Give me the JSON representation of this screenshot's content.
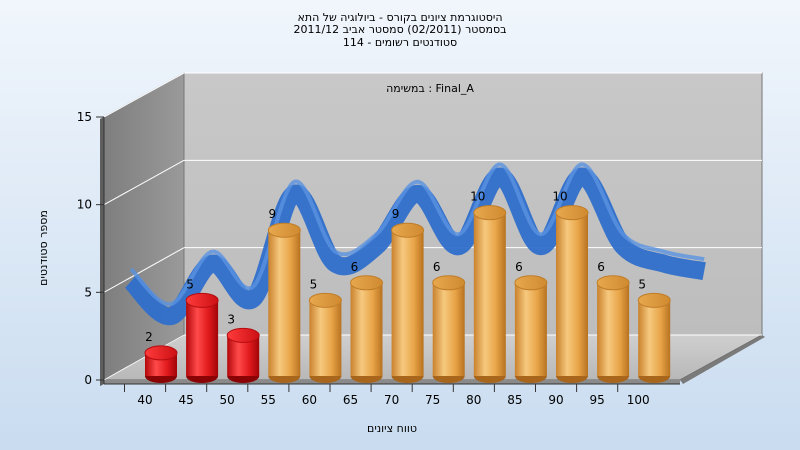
{
  "chart_data": {
    "type": "bar",
    "title_lines": [
      "היסטוגרמת ציונים בקורס - ביולוגיה של התא",
      "בסמסטר  (02/2011)  סמסטר אביב 2011/12",
      "114 - סטודנטים רשומים"
    ],
    "subtitle": "במשימה : Final_A",
    "xlabel": "טווח ציונים",
    "ylabel": "מספר סטודנטים",
    "categories": [
      "40",
      "45",
      "50",
      "55",
      "60",
      "65",
      "70",
      "75",
      "80",
      "85",
      "90",
      "95",
      "100"
    ],
    "values": [
      2,
      5,
      3,
      9,
      5,
      6,
      9,
      6,
      10,
      6,
      10,
      6,
      5
    ],
    "bar_colors": [
      "#e0191c",
      "#e0191c",
      "#e0191c",
      "#e1a24a",
      "#e1a24a",
      "#e1a24a",
      "#e1a24a",
      "#e1a24a",
      "#e1a24a",
      "#e1a24a",
      "#e1a24a",
      "#e1a24a",
      "#e1a24a"
    ],
    "smooth_line_color": "#2f6fcb",
    "yticks": [
      0,
      5,
      10,
      15
    ],
    "ylim": [
      0,
      15
    ],
    "grid": true,
    "legend": "none"
  }
}
